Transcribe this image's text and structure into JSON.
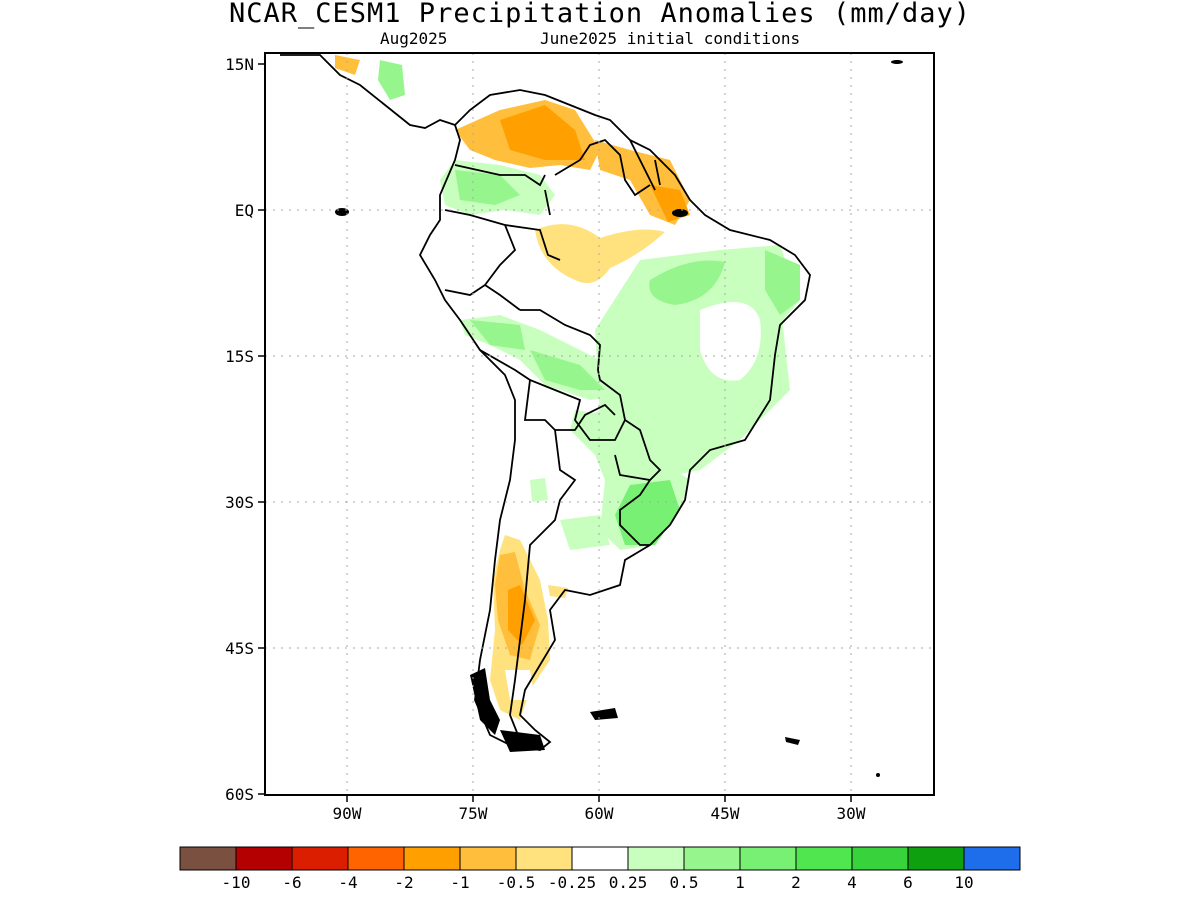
{
  "title": "NCAR_CESM1 Precipitation Anomalies (mm/day)",
  "subtitle_left": "Aug2025",
  "subtitle_right": "June2025 initial conditions",
  "lat_labels": [
    "15N",
    "EQ",
    "15S",
    "30S",
    "45S",
    "60S"
  ],
  "lon_labels": [
    "90W",
    "75W",
    "60W",
    "45W",
    "30W"
  ],
  "colorbar": {
    "colors": [
      "#7a5040",
      "#b40000",
      "#dc1e00",
      "#ff6400",
      "#ffa000",
      "#ffbe3c",
      "#ffe17e",
      "#ffffff",
      "#c8ffbe",
      "#96f58c",
      "#78f073",
      "#50e650",
      "#37d23c",
      "#0fa00f",
      "#1e6eeb"
    ],
    "labels": [
      "-10",
      "-6",
      "-4",
      "-2",
      "-1",
      "-0.5",
      "-0.25",
      "0.25",
      "0.5",
      "1",
      "2",
      "4",
      "6",
      "10"
    ]
  }
}
